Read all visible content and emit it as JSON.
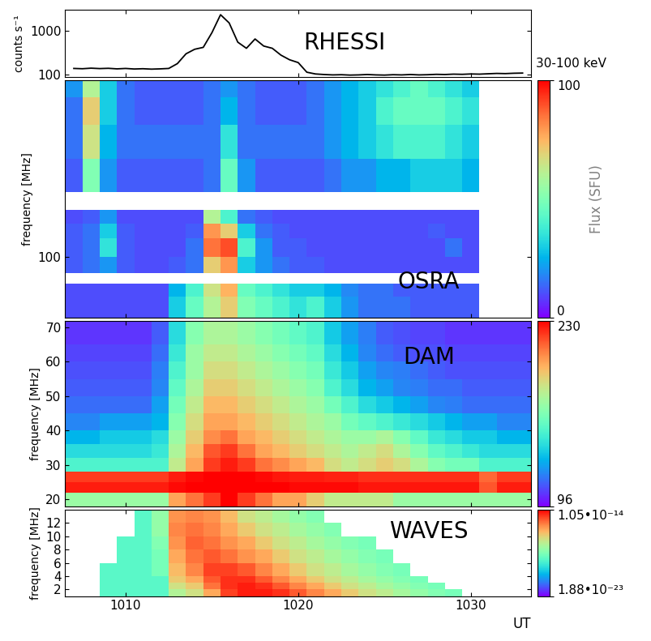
{
  "chart_data": [
    {
      "type": "line",
      "title": "RHESSI",
      "annotation": "30-100 keV",
      "ylabel": "counts s⁻¹",
      "color": "#000000",
      "log": "y",
      "tick_labels": "y",
      "x": [
        1007,
        1007.5,
        1008,
        1008.5,
        1009,
        1009.5,
        1010,
        1010.5,
        1011,
        1011.5,
        1012,
        1012.5,
        1013,
        1013.5,
        1014,
        1014.5,
        1015,
        1015.5,
        1016,
        1016.5,
        1017,
        1017.5,
        1018,
        1018.5,
        1019,
        1019.5,
        1020,
        1020.5,
        1021,
        1021.5,
        1022,
        1022.5,
        1023,
        1023.5,
        1024,
        1024.5,
        1025,
        1025.5,
        1026,
        1026.5,
        1027,
        1027.5,
        1028,
        1028.5,
        1029,
        1029.5,
        1030,
        1030.5,
        1031,
        1031.5,
        1032,
        1032.5,
        1033
      ],
      "values": [
        140,
        138,
        142,
        139,
        141,
        137,
        140,
        136,
        138,
        135,
        137,
        140,
        180,
        300,
        380,
        420,
        900,
        2300,
        1500,
        550,
        400,
        650,
        450,
        400,
        280,
        220,
        190,
        115,
        105,
        102,
        100,
        101,
        99,
        100,
        102,
        100,
        99,
        101,
        100,
        102,
        100,
        101,
        103,
        102,
        104,
        103,
        105,
        104,
        106,
        108,
        107,
        109,
        110
      ],
      "xlim": [
        1006.5,
        1033.5
      ],
      "xticks": [
        1010,
        1020,
        1030
      ],
      "ylim": [
        90,
        3000
      ],
      "yticks": [
        100,
        1000
      ]
    },
    {
      "type": "heatmap",
      "title": "OSRA",
      "ylabel": "frequency [MHz]",
      "log": "y",
      "tick_labels": "y",
      "x_edges": [
        1006.5,
        1007.5,
        1008.5,
        1009.5,
        1010.5,
        1011.5,
        1012.5,
        1013.5,
        1014.5,
        1015.5,
        1016.5,
        1017.5,
        1018.5,
        1019.5,
        1020.5,
        1021.5,
        1022.5,
        1023.5,
        1024.5,
        1025.5,
        1026.5,
        1027.5,
        1028.5,
        1029.5,
        1030.5,
        1031.5,
        1032.5,
        1033.5
      ],
      "y_edges": [
        48,
        62,
        72,
        82,
        100,
        125,
        150,
        178,
        220,
        330,
        500,
        700,
        860
      ],
      "cells": [
        [
          10,
          10,
          10,
          10,
          10,
          10,
          30,
          45,
          60,
          70,
          50,
          45,
          40,
          35,
          40,
          30,
          20,
          15,
          15,
          15,
          12,
          12,
          12,
          12,
          null,
          null,
          null
        ],
        [
          10,
          10,
          10,
          10,
          10,
          10,
          25,
          40,
          65,
          75,
          45,
          40,
          35,
          30,
          30,
          25,
          18,
          15,
          15,
          12,
          12,
          12,
          12,
          12,
          null,
          null,
          null
        ],
        [
          null,
          null,
          null,
          null,
          null,
          null,
          null,
          null,
          null,
          null,
          null,
          null,
          null,
          null,
          null,
          null,
          null,
          null,
          null,
          null,
          null,
          null,
          null,
          null,
          null,
          null,
          null
        ],
        [
          12,
          15,
          20,
          12,
          10,
          10,
          12,
          15,
          70,
          80,
          30,
          20,
          15,
          12,
          12,
          10,
          10,
          10,
          10,
          10,
          10,
          10,
          10,
          10,
          null,
          null,
          null
        ],
        [
          12,
          15,
          35,
          12,
          10,
          10,
          10,
          15,
          85,
          90,
          40,
          20,
          12,
          12,
          10,
          10,
          10,
          10,
          10,
          10,
          10,
          10,
          15,
          10,
          null,
          null,
          null
        ],
        [
          12,
          15,
          30,
          12,
          10,
          10,
          10,
          12,
          80,
          70,
          30,
          15,
          12,
          10,
          10,
          10,
          10,
          10,
          10,
          10,
          10,
          12,
          10,
          10,
          null,
          null,
          null
        ],
        [
          10,
          12,
          20,
          10,
          10,
          10,
          10,
          10,
          60,
          40,
          15,
          12,
          10,
          10,
          10,
          10,
          10,
          10,
          10,
          10,
          10,
          10,
          10,
          10,
          null,
          null,
          null
        ],
        [
          null,
          null,
          null,
          null,
          null,
          null,
          null,
          null,
          null,
          null,
          null,
          null,
          null,
          null,
          null,
          null,
          null,
          null,
          null,
          null,
          null,
          null,
          null,
          null,
          null,
          null,
          null
        ],
        [
          12,
          50,
          20,
          12,
          12,
          12,
          12,
          12,
          15,
          45,
          20,
          12,
          12,
          12,
          12,
          15,
          20,
          20,
          25,
          25,
          30,
          30,
          30,
          25,
          null,
          null,
          null
        ],
        [
          15,
          65,
          25,
          15,
          15,
          15,
          15,
          15,
          15,
          35,
          15,
          15,
          15,
          15,
          15,
          20,
          25,
          30,
          35,
          40,
          40,
          40,
          35,
          30,
          null,
          null,
          null
        ],
        [
          15,
          70,
          30,
          15,
          12,
          12,
          12,
          12,
          15,
          25,
          15,
          12,
          12,
          12,
          15,
          20,
          25,
          30,
          40,
          45,
          45,
          45,
          40,
          35,
          null,
          null,
          null
        ],
        [
          20,
          60,
          30,
          15,
          12,
          12,
          12,
          12,
          15,
          20,
          15,
          12,
          12,
          12,
          15,
          20,
          25,
          30,
          35,
          40,
          45,
          40,
          35,
          30,
          null,
          null,
          null
        ]
      ],
      "colorbar": {
        "range": [
          0,
          100
        ],
        "ticks": [
          0,
          100
        ],
        "label": "Flux (SFU)"
      },
      "xlim": [
        1006.5,
        1033.5
      ],
      "xticks": [
        1010,
        1020,
        1030
      ],
      "ylim": [
        48,
        860
      ],
      "yticks": [
        100
      ]
    },
    {
      "type": "heatmap",
      "title": "DAM",
      "ylabel": "frequency [MHz]",
      "tick_labels": "y",
      "x_edges": [
        1006.5,
        1007.5,
        1008.5,
        1009.5,
        1010.5,
        1011.5,
        1012.5,
        1013.5,
        1014.5,
        1015.5,
        1016.5,
        1017.5,
        1018.5,
        1019.5,
        1020.5,
        1021.5,
        1022.5,
        1023.5,
        1024.5,
        1025.5,
        1026.5,
        1027.5,
        1028.5,
        1029.5,
        1030.5,
        1031.5,
        1032.5,
        1033.5
      ],
      "y_edges": [
        18,
        22,
        25,
        28,
        32,
        36,
        40,
        45,
        50,
        55,
        60,
        65,
        72
      ],
      "cells": [
        [
          170,
          170,
          170,
          170,
          170,
          170,
          200,
          210,
          220,
          230,
          220,
          210,
          200,
          200,
          190,
          180,
          180,
          180,
          180,
          170,
          170,
          170,
          170,
          170,
          170,
          170,
          170
        ],
        [
          225,
          225,
          225,
          225,
          225,
          225,
          228,
          230,
          230,
          230,
          230,
          230,
          230,
          228,
          228,
          228,
          228,
          226,
          226,
          226,
          226,
          226,
          226,
          226,
          215,
          225,
          225
        ],
        [
          220,
          220,
          220,
          220,
          220,
          220,
          225,
          228,
          230,
          230,
          230,
          228,
          226,
          225,
          225,
          224,
          224,
          222,
          222,
          222,
          222,
          222,
          222,
          222,
          212,
          220,
          220
        ],
        [
          150,
          150,
          150,
          150,
          150,
          150,
          180,
          200,
          220,
          225,
          220,
          210,
          205,
          200,
          195,
          185,
          180,
          185,
          190,
          185,
          175,
          165,
          160,
          160,
          150,
          150,
          150
        ],
        [
          140,
          140,
          140,
          140,
          140,
          145,
          175,
          195,
          215,
          220,
          210,
          200,
          195,
          190,
          185,
          180,
          175,
          180,
          185,
          175,
          165,
          155,
          150,
          145,
          140,
          140,
          140
        ],
        [
          130,
          130,
          135,
          135,
          135,
          140,
          170,
          190,
          205,
          210,
          200,
          195,
          190,
          185,
          180,
          175,
          170,
          170,
          175,
          165,
          155,
          145,
          140,
          135,
          135,
          130,
          130
        ],
        [
          120,
          120,
          125,
          125,
          125,
          130,
          165,
          185,
          200,
          200,
          195,
          190,
          185,
          180,
          175,
          170,
          160,
          155,
          150,
          145,
          140,
          135,
          130,
          125,
          125,
          120,
          120
        ],
        [
          115,
          115,
          115,
          115,
          115,
          125,
          160,
          180,
          195,
          195,
          190,
          185,
          180,
          175,
          170,
          160,
          150,
          140,
          135,
          130,
          125,
          120,
          118,
          115,
          115,
          115,
          115
        ],
        [
          112,
          112,
          112,
          112,
          112,
          120,
          155,
          175,
          190,
          190,
          185,
          180,
          175,
          170,
          165,
          150,
          140,
          130,
          125,
          120,
          118,
          115,
          115,
          112,
          112,
          112,
          112
        ],
        [
          110,
          110,
          110,
          110,
          110,
          118,
          150,
          170,
          185,
          185,
          180,
          175,
          170,
          165,
          160,
          145,
          135,
          125,
          120,
          118,
          115,
          112,
          110,
          110,
          110,
          110,
          110
        ],
        [
          108,
          108,
          108,
          108,
          108,
          115,
          145,
          170,
          180,
          180,
          175,
          170,
          165,
          160,
          155,
          140,
          130,
          120,
          115,
          112,
          110,
          110,
          108,
          108,
          108,
          108,
          108
        ],
        [
          105,
          105,
          105,
          105,
          105,
          112,
          140,
          165,
          175,
          175,
          170,
          165,
          160,
          155,
          150,
          135,
          125,
          118,
          112,
          110,
          108,
          108,
          105,
          105,
          105,
          105,
          105
        ]
      ],
      "colorbar": {
        "range": [
          96,
          230
        ],
        "ticks": [
          96,
          230
        ]
      },
      "xlim": [
        1006.5,
        1033.5
      ],
      "xticks": [
        1010,
        1020,
        1030
      ],
      "ylim": [
        18,
        72
      ],
      "yticks": [
        20,
        30,
        40,
        50,
        60,
        70
      ]
    },
    {
      "type": "heatmap",
      "title": "WAVES",
      "ylabel": "frequency [MHz]",
      "xlabel": "UT",
      "x_edges": [
        1006.5,
        1007.5,
        1008.5,
        1009.5,
        1010.5,
        1011.5,
        1012.5,
        1013.5,
        1014.5,
        1015.5,
        1016.5,
        1017.5,
        1018.5,
        1019.5,
        1020.5,
        1021.5,
        1022.5,
        1023.5,
        1024.5,
        1025.5,
        1026.5,
        1027.5,
        1028.5,
        1029.5,
        1030.5,
        1031.5,
        1032.5,
        1033.5
      ],
      "y_edges": [
        1,
        2,
        3,
        4,
        6,
        8,
        10,
        12,
        14
      ],
      "cells": [
        [
          null,
          null,
          1e-19,
          1e-19,
          1e-19,
          1e-19,
          3e-18,
          1e-17,
          1e-16,
          2e-15,
          5e-15,
          5e-15,
          3e-15,
          1e-15,
          3e-16,
          1e-16,
          3e-17,
          1e-17,
          5e-18,
          2e-18,
          1e-18,
          5e-19,
          3e-19,
          null,
          null,
          null,
          null
        ],
        [
          null,
          null,
          1e-19,
          1e-19,
          1e-19,
          1e-19,
          1e-17,
          3e-17,
          5e-16,
          3e-15,
          5e-15,
          3e-15,
          1e-15,
          3e-16,
          1e-16,
          3e-17,
          1e-17,
          5e-18,
          2e-18,
          1e-18,
          5e-19,
          3e-19,
          null,
          null,
          null,
          null,
          null
        ],
        [
          null,
          null,
          1e-19,
          1e-19,
          1e-19,
          1e-19,
          3e-17,
          1e-16,
          1e-15,
          3e-15,
          3e-15,
          1e-15,
          3e-16,
          1e-16,
          3e-17,
          1e-17,
          5e-18,
          2e-18,
          1e-18,
          5e-19,
          3e-19,
          null,
          null,
          null,
          null,
          null,
          null
        ],
        [
          null,
          null,
          1e-19,
          1e-19,
          1e-19,
          3e-19,
          5e-17,
          3e-16,
          2e-15,
          2e-15,
          1e-15,
          3e-16,
          1e-16,
          3e-17,
          1e-17,
          5e-18,
          2e-18,
          1e-18,
          5e-19,
          3e-19,
          null,
          null,
          null,
          null,
          null,
          null,
          null
        ],
        [
          null,
          null,
          null,
          1e-19,
          1e-19,
          3e-19,
          1e-16,
          5e-16,
          1e-15,
          5e-16,
          2e-16,
          1e-16,
          3e-17,
          1e-17,
          5e-18,
          2e-18,
          1e-18,
          5e-19,
          3e-19,
          null,
          null,
          null,
          null,
          null,
          null,
          null,
          null
        ],
        [
          null,
          null,
          null,
          1e-19,
          1e-19,
          5e-19,
          2e-16,
          8e-16,
          5e-16,
          2e-16,
          1e-16,
          3e-17,
          1e-17,
          5e-18,
          2e-18,
          1e-18,
          5e-19,
          3e-19,
          null,
          null,
          null,
          null,
          null,
          null,
          null,
          null,
          null
        ],
        [
          null,
          null,
          null,
          null,
          1e-19,
          1e-18,
          3e-16,
          5e-16,
          3e-16,
          1e-16,
          3e-17,
          1e-17,
          5e-18,
          2e-18,
          1e-18,
          5e-19,
          null,
          null,
          null,
          null,
          null,
          null,
          null,
          null,
          null,
          null,
          null
        ],
        [
          null,
          null,
          null,
          null,
          1e-19,
          1e-18,
          2e-16,
          3e-16,
          2e-16,
          5e-17,
          1e-17,
          5e-18,
          2e-18,
          1e-18,
          5e-19,
          null,
          null,
          null,
          null,
          null,
          null,
          null,
          null,
          null,
          null,
          null,
          null
        ]
      ],
      "colorbar": {
        "range": [
          1.88e-23,
          1.05e-14
        ],
        "log": true,
        "ticks": [
          {
            "value": 1.88e-23,
            "label": "1.88•10⁻²³"
          },
          {
            "value": 1.05e-14,
            "label": "1.05•10⁻¹⁴"
          }
        ]
      },
      "xlim": [
        1006.5,
        1033.5
      ],
      "xticks": [
        1010,
        1020,
        1030
      ],
      "ylim": [
        1,
        14
      ],
      "yticks": [
        2,
        4,
        6,
        8,
        10,
        12
      ]
    }
  ]
}
